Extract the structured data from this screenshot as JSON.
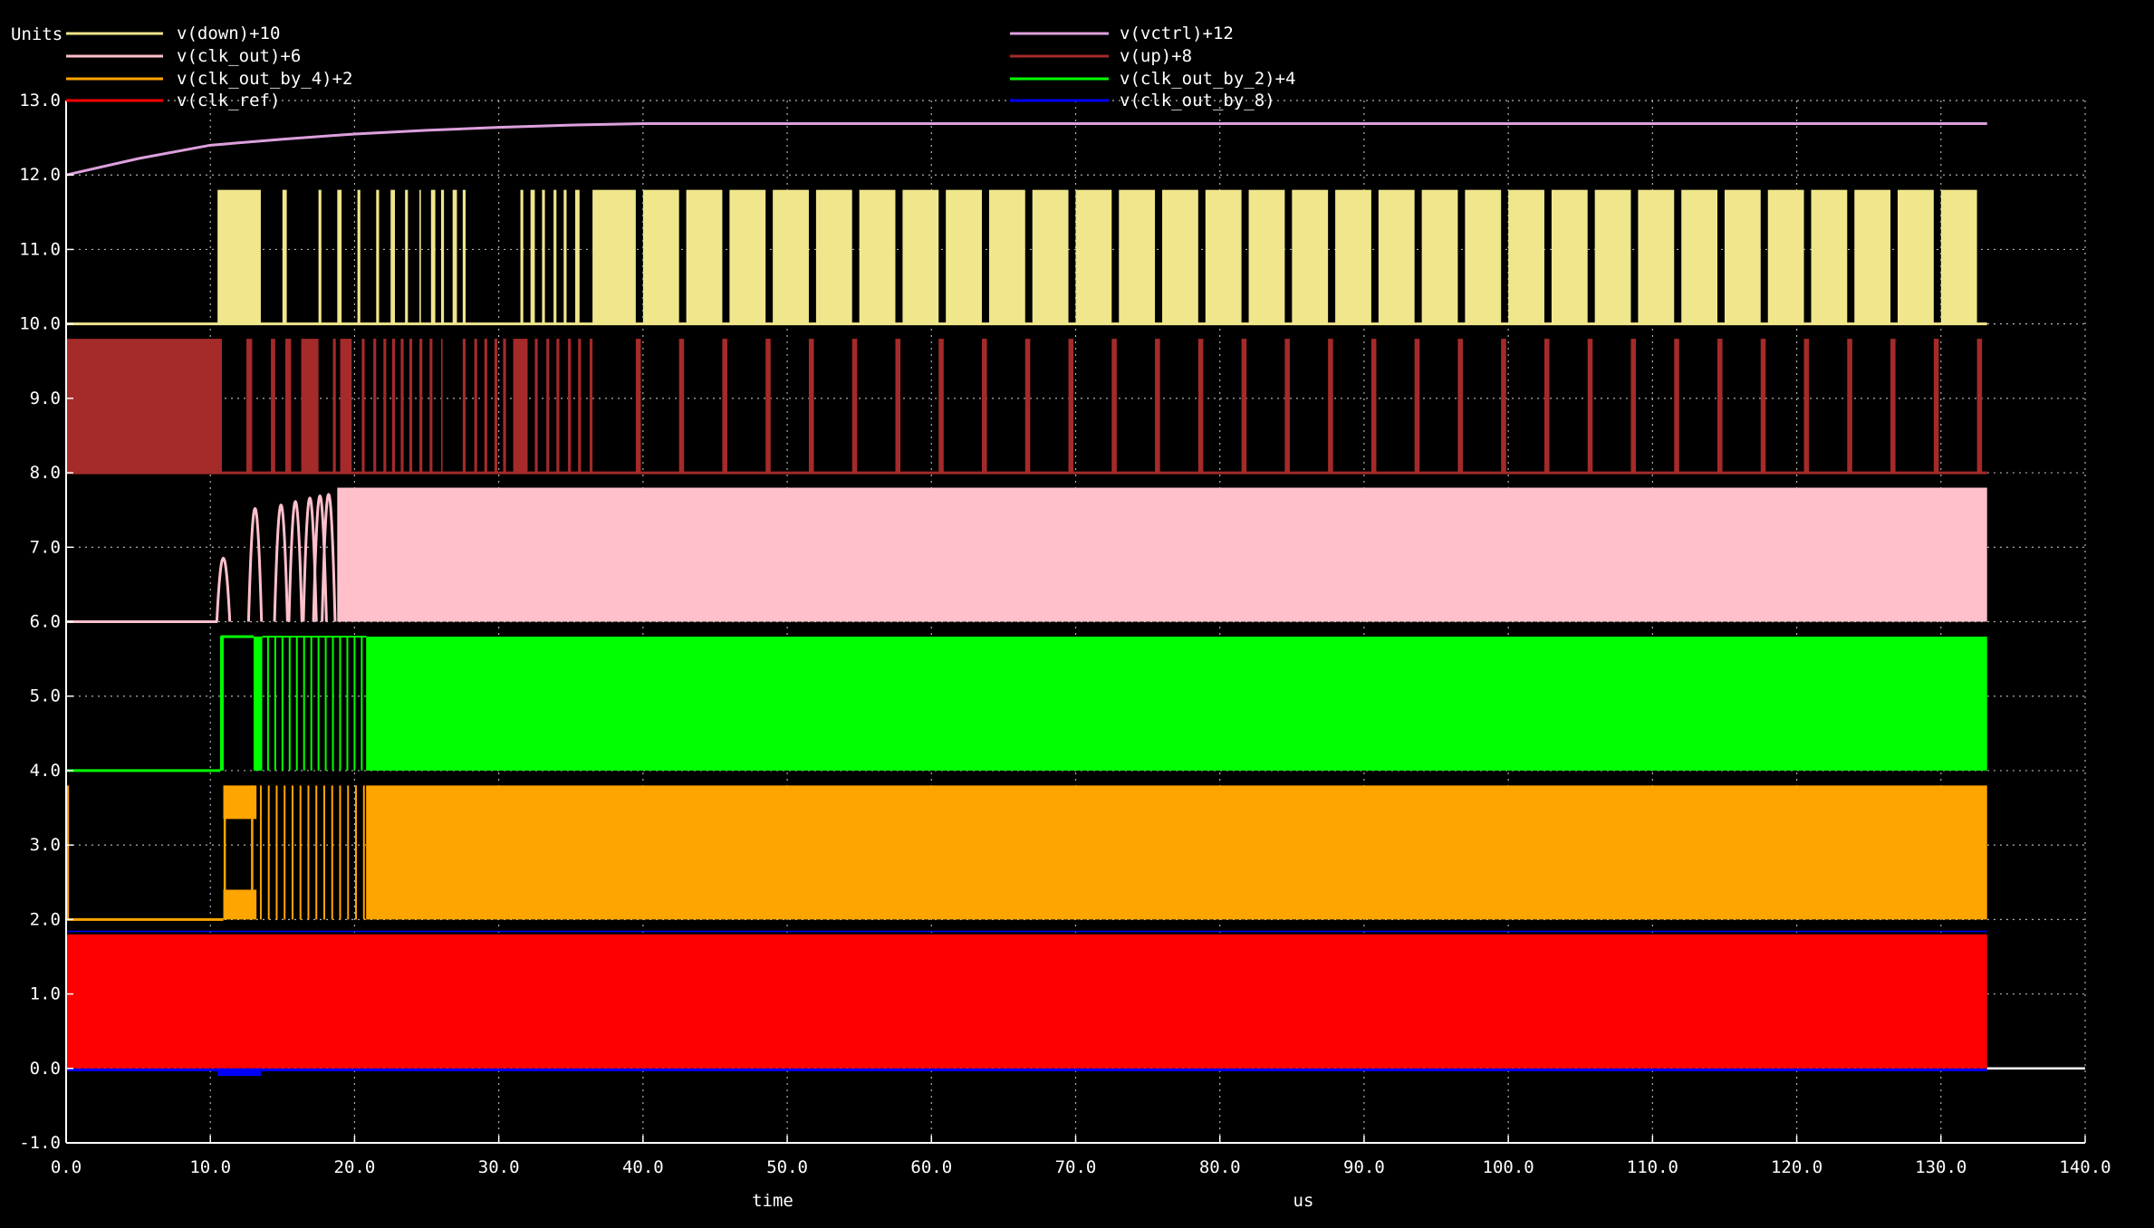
{
  "chart_data": {
    "type": "line",
    "units_label": "Units",
    "xlabel": "time",
    "x_units": "us",
    "xlim": [
      0,
      140
    ],
    "ylim": [
      -1,
      13
    ],
    "x_ticks": [
      "0.0",
      "10.0",
      "20.0",
      "30.0",
      "40.0",
      "50.0",
      "60.0",
      "70.0",
      "80.0",
      "90.0",
      "100.0",
      "110.0",
      "120.0",
      "130.0",
      "140.0"
    ],
    "y_ticks": [
      "-1.0",
      "0.0",
      "1.0",
      "2.0",
      "3.0",
      "4.0",
      "5.0",
      "6.0",
      "7.0",
      "8.0",
      "9.0",
      "10.0",
      "11.0",
      "12.0",
      "13.0"
    ],
    "grid": true,
    "legend_position": "top",
    "series": [
      {
        "name": "v(down)+10",
        "color": "#f0e68c",
        "offset": 10,
        "column": 0,
        "row": 0
      },
      {
        "name": "v(clk_out)+6",
        "color": "#ffc0cb",
        "offset": 6,
        "column": 0,
        "row": 1
      },
      {
        "name": "v(clk_out_by_4)+2",
        "color": "#ffa500",
        "offset": 2,
        "column": 0,
        "row": 2
      },
      {
        "name": "v(clk_ref)",
        "color": "#ff0000",
        "offset": 0,
        "column": 0,
        "row": 3
      },
      {
        "name": "v(vctrl)+12",
        "color": "#dda0dd",
        "offset": 12,
        "column": 1,
        "row": 0
      },
      {
        "name": "v(up)+8",
        "color": "#a52a2a",
        "offset": 8,
        "column": 1,
        "row": 1
      },
      {
        "name": "v(clk_out_by_2)+4",
        "color": "#00ff00",
        "offset": 4,
        "column": 1,
        "row": 2
      },
      {
        "name": "v(clk_out_by_8)",
        "color": "#0000ff",
        "offset": 0,
        "column": 1,
        "row": 3
      }
    ],
    "t_end": 133.2,
    "vctrl_curve": {
      "x": [
        0,
        5,
        10,
        15,
        20,
        25,
        30,
        35,
        40,
        50,
        60,
        80,
        100,
        120,
        133.2
      ],
      "y": [
        12.0,
        12.22,
        12.4,
        12.48,
        12.55,
        12.6,
        12.64,
        12.67,
        12.69,
        12.69,
        12.69,
        12.69,
        12.69,
        12.69,
        12.69
      ]
    },
    "pulse_high": 1.8,
    "down_pulses_early": [
      [
        10.5,
        13.5
      ],
      [
        15.0,
        15.3
      ],
      [
        17.5,
        17.7
      ],
      [
        18.8,
        19.1
      ],
      [
        20.2,
        20.4
      ],
      [
        21.5,
        21.7
      ],
      [
        22.5,
        22.8
      ],
      [
        23.5,
        23.7
      ],
      [
        24.5,
        24.6
      ],
      [
        25.3,
        25.6
      ],
      [
        26.0,
        26.2
      ],
      [
        26.8,
        27.1
      ],
      [
        27.5,
        27.7
      ],
      [
        31.5,
        31.7
      ],
      [
        32.2,
        32.5
      ],
      [
        33.0,
        33.2
      ],
      [
        33.8,
        34.0
      ],
      [
        34.5,
        34.7
      ],
      [
        35.3,
        35.6
      ],
      [
        36.5,
        39.5
      ]
    ],
    "down_pulse_period": 3.0,
    "down_pulse_width": 2.5,
    "up_pulses_early": [
      [
        0,
        10.8
      ],
      [
        12.5,
        12.9
      ],
      [
        14.2,
        14.5
      ],
      [
        15.2,
        15.6
      ],
      [
        16.3,
        17.5
      ],
      [
        18.5,
        18.7
      ],
      [
        19.0,
        19.8
      ],
      [
        20.5,
        20.7
      ],
      [
        21.3,
        21.5
      ],
      [
        22.0,
        22.2
      ],
      [
        22.6,
        22.8
      ],
      [
        23.2,
        23.4
      ],
      [
        23.8,
        24.0
      ],
      [
        24.5,
        24.7
      ],
      [
        25.2,
        25.4
      ],
      [
        26.0,
        26.1
      ],
      [
        27.5,
        27.7
      ],
      [
        28.3,
        28.5
      ],
      [
        29.0,
        29.2
      ],
      [
        29.7,
        29.9
      ],
      [
        30.3,
        30.5
      ],
      [
        31.0,
        32.0
      ],
      [
        32.5,
        32.7
      ],
      [
        33.3,
        33.5
      ],
      [
        34.0,
        34.2
      ],
      [
        34.8,
        35.0
      ],
      [
        35.5,
        35.7
      ],
      [
        36.3,
        36.5
      ]
    ],
    "up_pulse_period": 3.0,
    "up_pulse_width": 0.35,
    "clkout_startup_bumps": [
      10.9,
      13.1,
      14.9,
      15.9,
      16.9,
      17.6,
      18.2
    ],
    "clkout_solid_from": 18.8,
    "clk_by_2_solid_from": 20.8,
    "clk_by_4_solid_from": 20.8,
    "clk_by_4_early_high": [
      0,
      0.2
    ]
  }
}
